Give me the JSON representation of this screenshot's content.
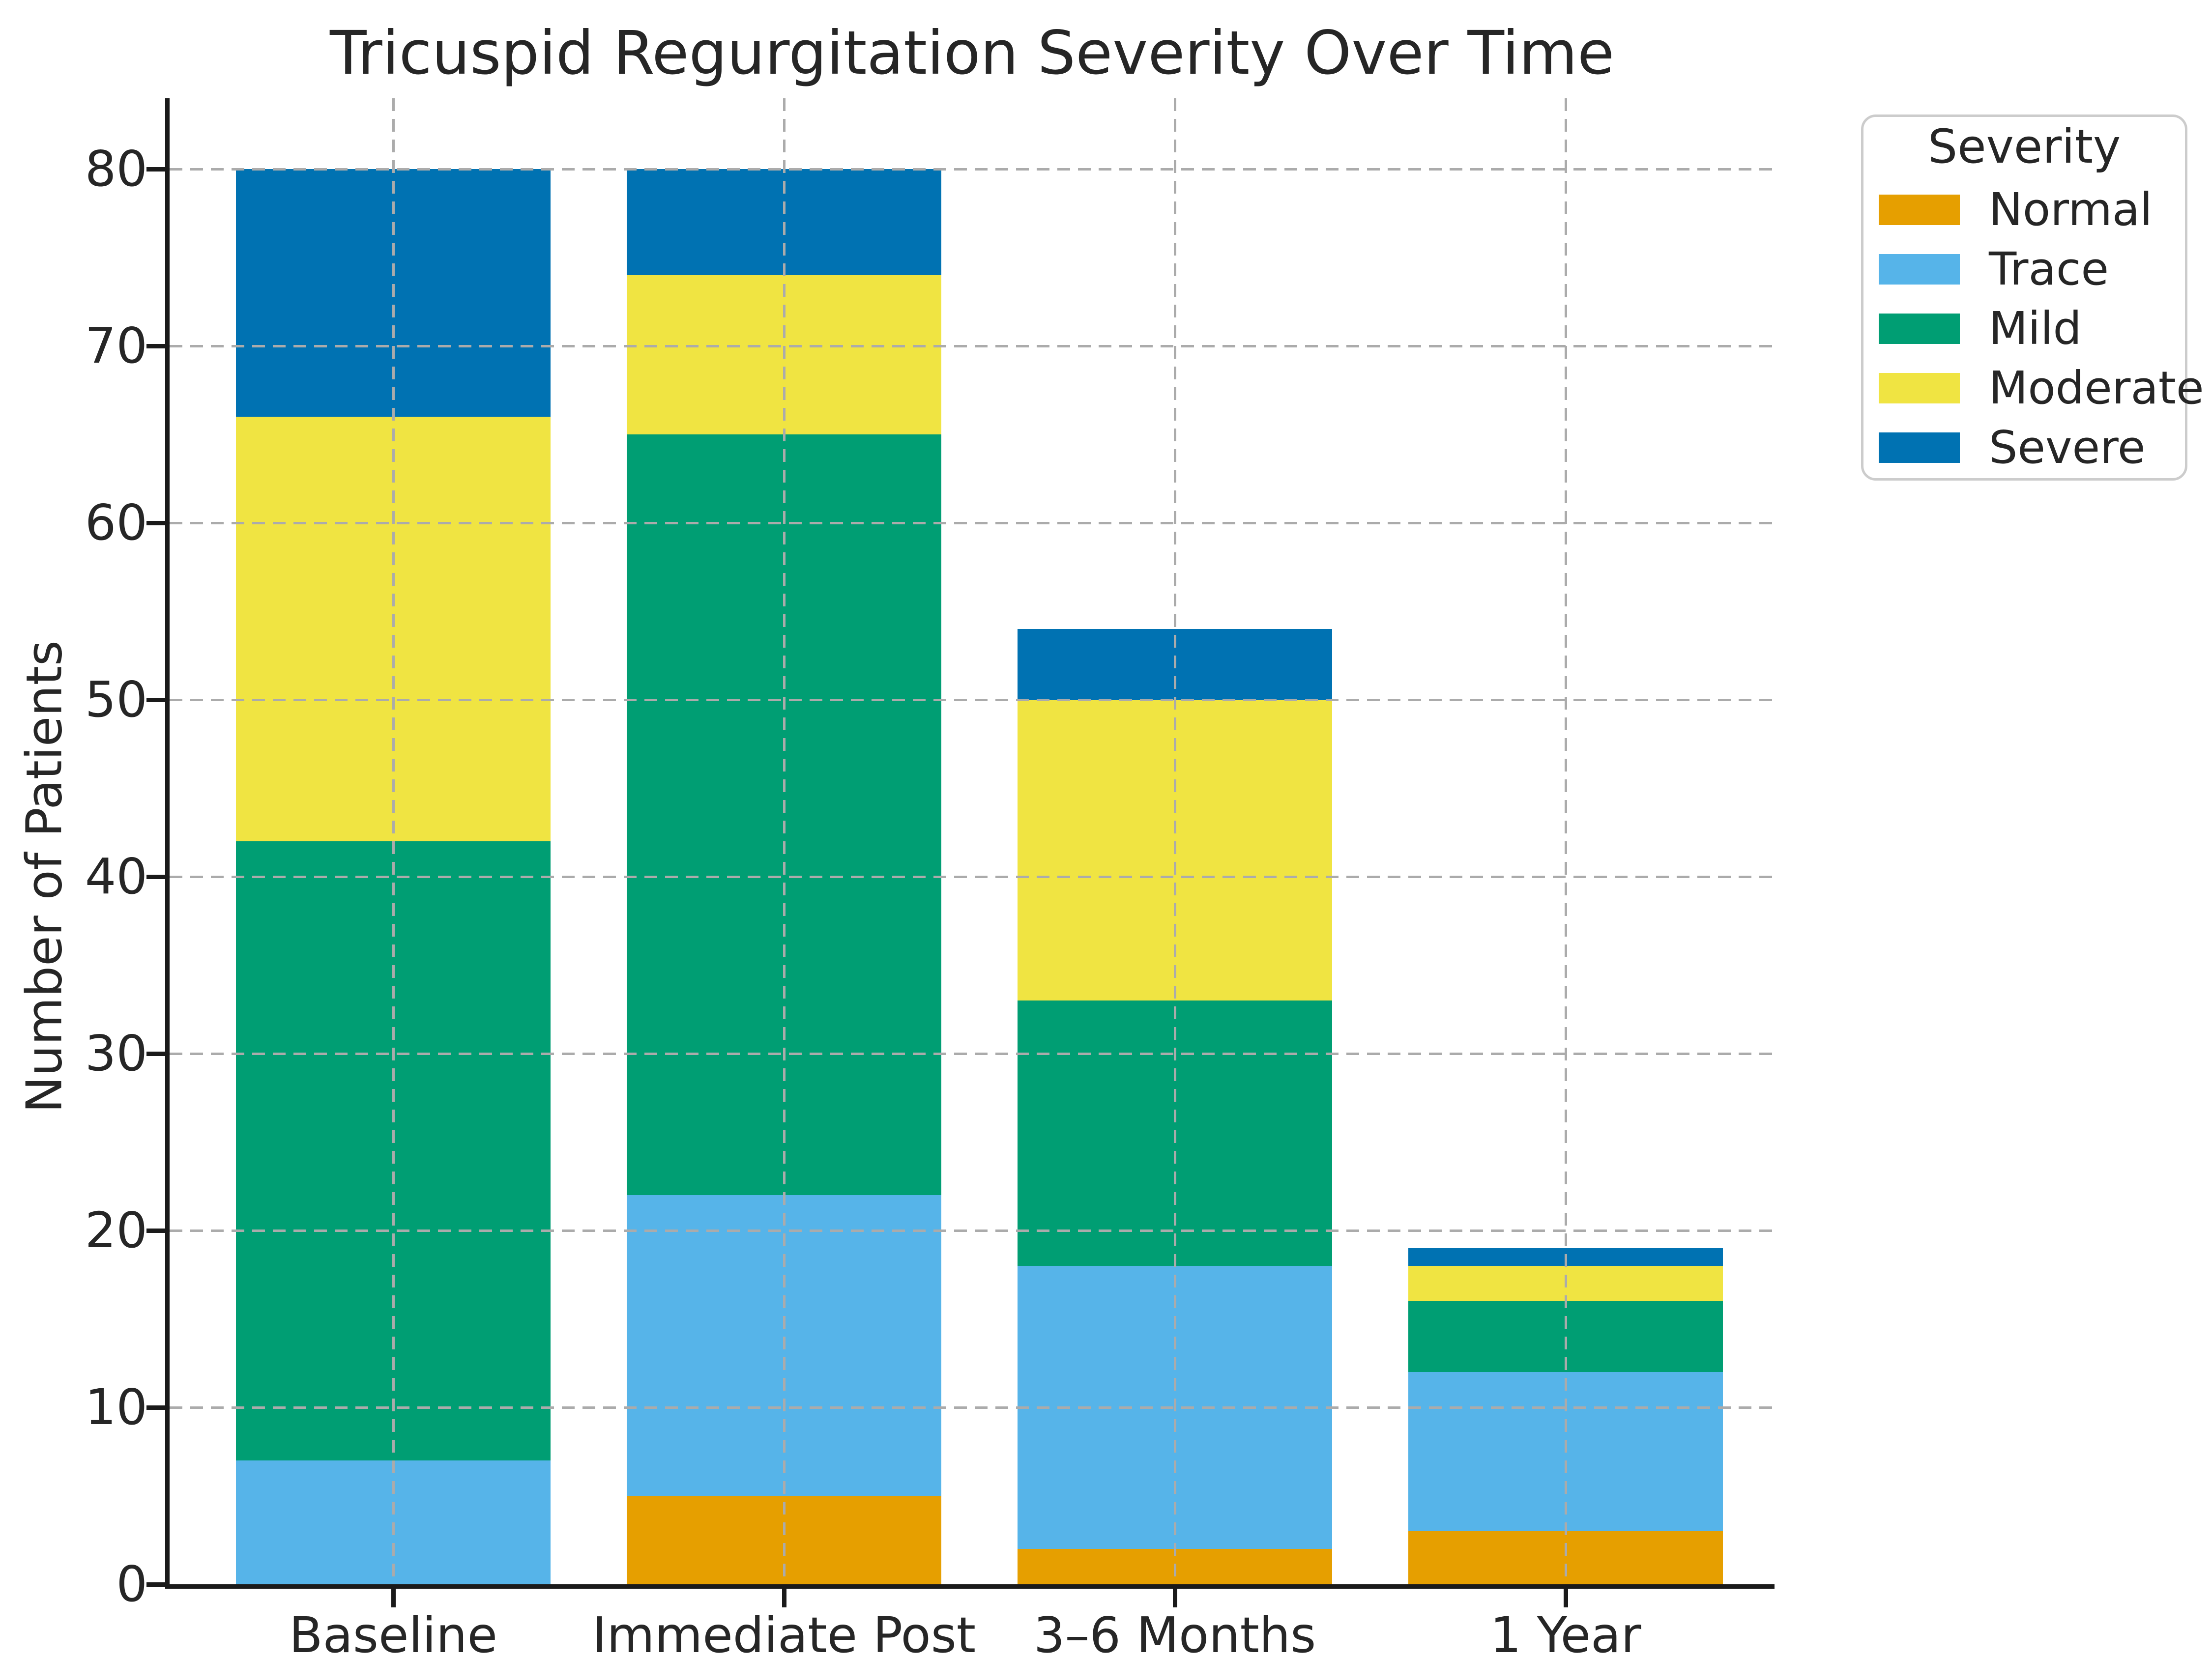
{
  "chart_data": {
    "type": "bar",
    "stacked": true,
    "title": "Tricuspid Regurgitation Severity Over Time",
    "ylabel": "Number of Patients",
    "xlabel": "",
    "categories": [
      "Baseline",
      "Immediate Post",
      "3–6 Months",
      "1 Year"
    ],
    "series": [
      {
        "name": "Normal",
        "color": "#E69F00",
        "values": [
          0,
          5,
          2,
          3
        ]
      },
      {
        "name": "Trace",
        "color": "#56B4E9",
        "values": [
          7,
          17,
          16,
          9
        ]
      },
      {
        "name": "Mild",
        "color": "#009E73",
        "values": [
          35,
          43,
          15,
          4
        ]
      },
      {
        "name": "Moderate",
        "color": "#F0E442",
        "values": [
          24,
          9,
          17,
          2
        ]
      },
      {
        "name": "Severe",
        "color": "#0072B2",
        "values": [
          14,
          6,
          4,
          1
        ]
      }
    ],
    "stack_totals": [
      80,
      80,
      54,
      19
    ],
    "ylim": [
      0,
      84
    ],
    "yticks": [
      0,
      10,
      20,
      30,
      40,
      50,
      60,
      70,
      80
    ],
    "grid": {
      "style": "dashed",
      "color": "#ababab",
      "horizontal": true,
      "vertical": true
    },
    "legend": {
      "title": "Severity",
      "position": "upper-right-outside"
    },
    "axis_color": "#1a1a1a",
    "background": "#ffffff"
  }
}
